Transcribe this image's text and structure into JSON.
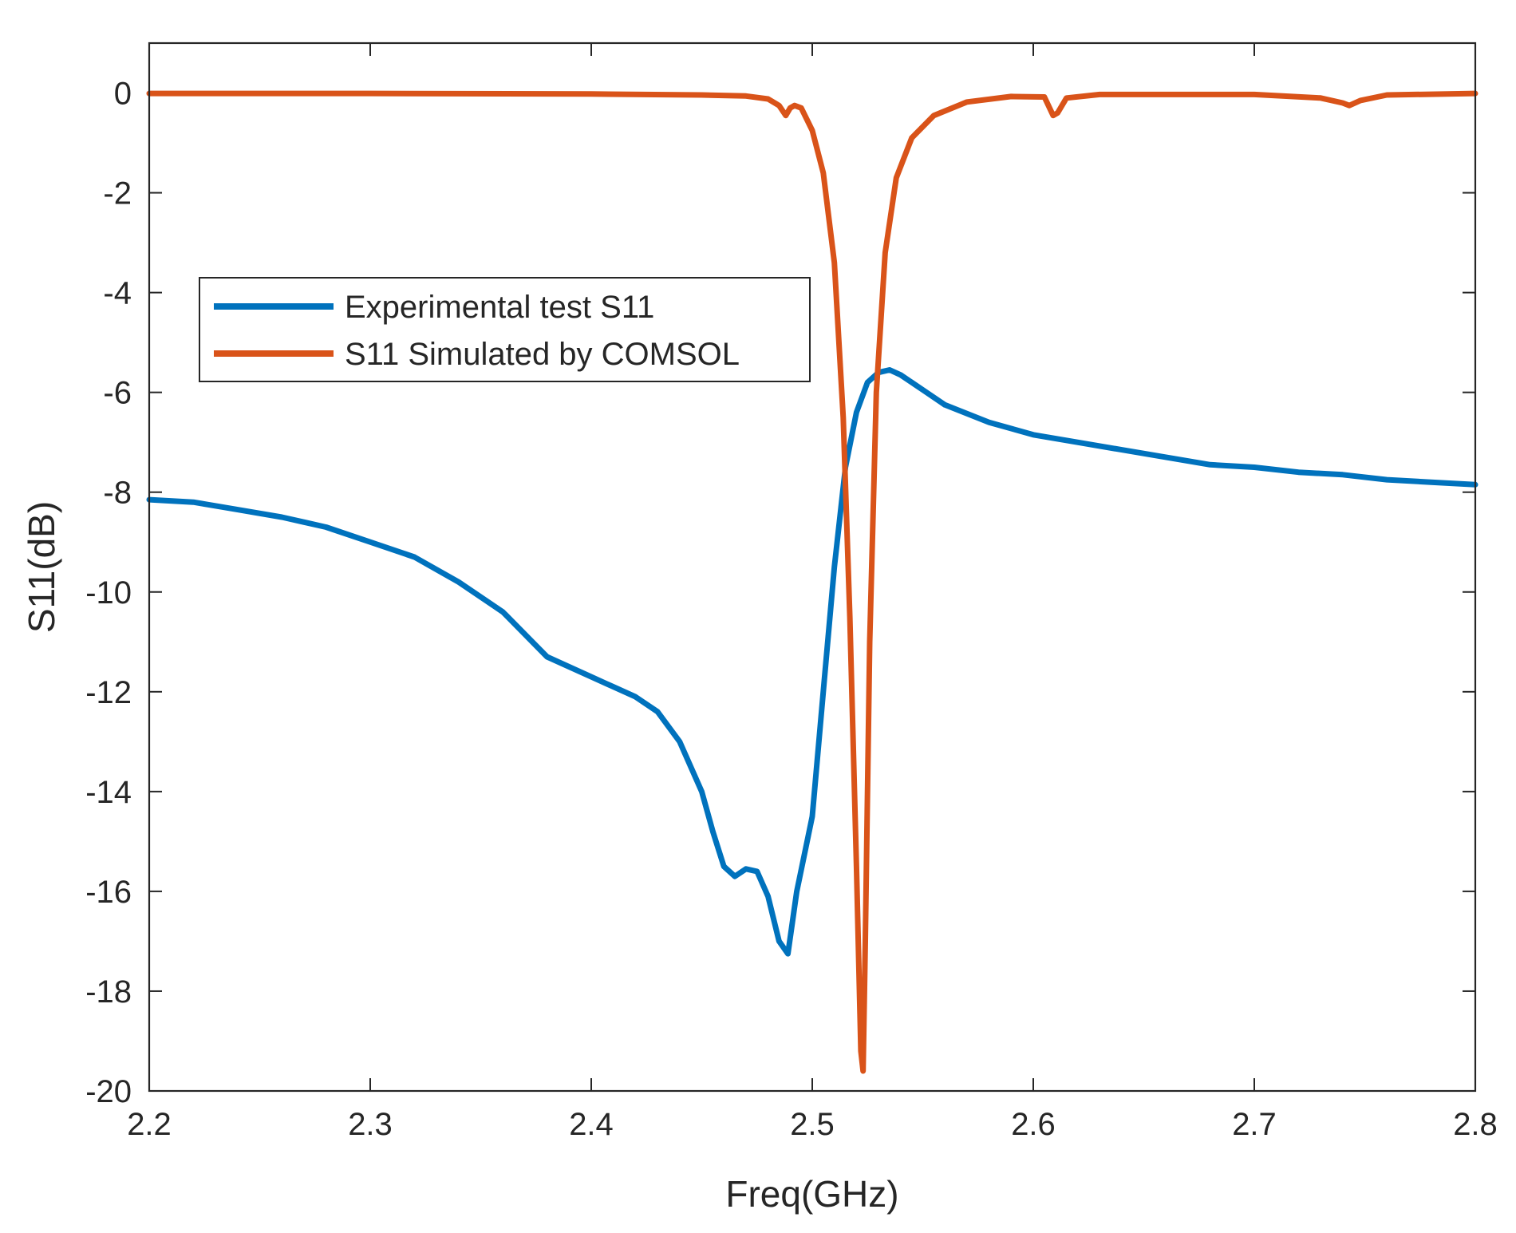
{
  "chart_data": {
    "type": "line",
    "title": "",
    "xlabel": "Freq(GHz)",
    "ylabel": "S11(dB)",
    "xlim": [
      2.2,
      2.8
    ],
    "ylim": [
      -20,
      1
    ],
    "xticks": [
      2.2,
      2.3,
      2.4,
      2.5,
      2.6,
      2.7,
      2.8
    ],
    "xtick_labels": [
      "2.2",
      "2.3",
      "2.4",
      "2.5",
      "2.6",
      "2.7",
      "2.8"
    ],
    "yticks": [
      0,
      -2,
      -4,
      -6,
      -8,
      -10,
      -12,
      -14,
      -16,
      -18,
      -20
    ],
    "ytick_labels": [
      "0",
      "-2",
      "-4",
      "-6",
      "-8",
      "-10",
      "-12",
      "-14",
      "-16",
      "-18",
      "-20"
    ],
    "grid": false,
    "legend_position": "top-left",
    "series": [
      {
        "name": "Experimental test S11",
        "color": "#0072BD",
        "x": [
          2.2,
          2.22,
          2.24,
          2.26,
          2.28,
          2.3,
          2.32,
          2.34,
          2.36,
          2.38,
          2.4,
          2.41,
          2.42,
          2.43,
          2.44,
          2.45,
          2.455,
          2.46,
          2.465,
          2.47,
          2.475,
          2.48,
          2.485,
          2.489,
          2.493,
          2.5,
          2.505,
          2.51,
          2.515,
          2.52,
          2.525,
          2.53,
          2.535,
          2.54,
          2.55,
          2.56,
          2.58,
          2.6,
          2.62,
          2.64,
          2.66,
          2.68,
          2.7,
          2.72,
          2.74,
          2.76,
          2.78,
          2.8
        ],
        "y": [
          -8.15,
          -8.2,
          -8.35,
          -8.5,
          -8.7,
          -9.0,
          -9.3,
          -9.8,
          -10.4,
          -11.3,
          -11.7,
          -11.9,
          -12.1,
          -12.4,
          -13.0,
          -14.0,
          -14.8,
          -15.5,
          -15.7,
          -15.55,
          -15.6,
          -16.1,
          -17.0,
          -17.25,
          -16.0,
          -14.5,
          -12.0,
          -9.5,
          -7.5,
          -6.4,
          -5.8,
          -5.6,
          -5.55,
          -5.65,
          -5.95,
          -6.25,
          -6.6,
          -6.85,
          -7.0,
          -7.15,
          -7.3,
          -7.45,
          -7.5,
          -7.6,
          -7.65,
          -7.75,
          -7.8,
          -7.85
        ]
      },
      {
        "name": "S11 Simulated by COMSOL",
        "color": "#D95319",
        "x": [
          2.2,
          2.3,
          2.4,
          2.45,
          2.47,
          2.48,
          2.485,
          2.488,
          2.49,
          2.492,
          2.495,
          2.5,
          2.505,
          2.51,
          2.514,
          2.517,
          2.52,
          2.522,
          2.523,
          2.524,
          2.526,
          2.529,
          2.533,
          2.538,
          2.545,
          2.555,
          2.57,
          2.59,
          2.605,
          2.609,
          2.611,
          2.615,
          2.63,
          2.7,
          2.73,
          2.74,
          2.743,
          2.748,
          2.76,
          2.8
        ],
        "y": [
          -0.01,
          -0.01,
          -0.02,
          -0.04,
          -0.06,
          -0.12,
          -0.25,
          -0.45,
          -0.3,
          -0.25,
          -0.3,
          -0.75,
          -1.6,
          -3.4,
          -6.5,
          -10.5,
          -15.5,
          -19.2,
          -19.6,
          -17.0,
          -11.0,
          -6.0,
          -3.2,
          -1.7,
          -0.9,
          -0.45,
          -0.18,
          -0.07,
          -0.08,
          -0.45,
          -0.4,
          -0.1,
          -0.03,
          -0.03,
          -0.1,
          -0.2,
          -0.25,
          -0.15,
          -0.04,
          -0.01
        ]
      }
    ]
  }
}
